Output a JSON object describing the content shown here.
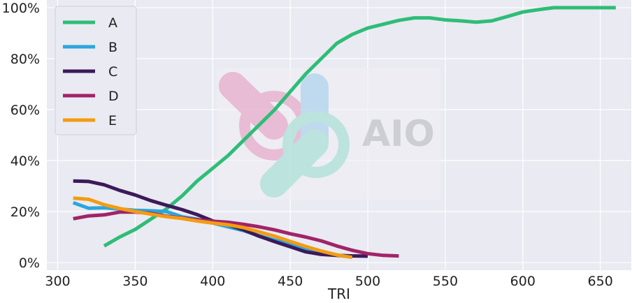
{
  "chart_data": {
    "type": "line",
    "title": "",
    "xlabel": "TRI",
    "ylabel": "",
    "xlim": [
      293,
      670
    ],
    "ylim": [
      -3,
      103
    ],
    "xticks": [
      300,
      350,
      400,
      450,
      500,
      550,
      600,
      650
    ],
    "xtick_labels": [
      "300",
      "350",
      "400",
      "450",
      "500",
      "550",
      "600",
      "650"
    ],
    "yticks": [
      0,
      20,
      40,
      60,
      80,
      100
    ],
    "ytick_labels": [
      "0%",
      "20%",
      "40%",
      "60%",
      "80%",
      "100%"
    ],
    "grid": true,
    "legend_position": "top-left",
    "series": [
      {
        "name": "A",
        "color": "#2ebd77",
        "x": [
          330,
          340,
          350,
          360,
          370,
          380,
          390,
          400,
          410,
          420,
          430,
          440,
          450,
          460,
          470,
          480,
          490,
          500,
          510,
          520,
          530,
          540,
          550,
          560,
          570,
          580,
          590,
          600,
          610,
          620,
          630,
          640,
          650,
          660
        ],
        "y": [
          6.5,
          10,
          13,
          17,
          21,
          26,
          32,
          37,
          42,
          48,
          54,
          60,
          67,
          74,
          80,
          86,
          89.5,
          92,
          93.5,
          95,
          96,
          96,
          95.2,
          94.8,
          94.3,
          94.8,
          96.5,
          98.3,
          99.2,
          100,
          100,
          100,
          100,
          100
        ]
      },
      {
        "name": "B",
        "color": "#2aa6de",
        "x": [
          310,
          320,
          330,
          340,
          350,
          360,
          370,
          380,
          390,
          400,
          410,
          420,
          430,
          440,
          450,
          460,
          470,
          480,
          490
        ],
        "y": [
          23.5,
          21.3,
          21.5,
          21,
          20.5,
          20.3,
          20,
          18,
          17,
          15.5,
          14,
          12.5,
          10.5,
          8.8,
          7.2,
          5.3,
          3.8,
          2.8,
          2.2
        ]
      },
      {
        "name": "C",
        "color": "#3b1a5a",
        "x": [
          310,
          320,
          330,
          340,
          350,
          360,
          370,
          380,
          390,
          400,
          410,
          420,
          430,
          440,
          450,
          460,
          470,
          480,
          490,
          500
        ],
        "y": [
          32,
          31.8,
          30.5,
          28.3,
          26.5,
          24.3,
          22.5,
          20.8,
          18.8,
          16.3,
          14.8,
          12.8,
          10.3,
          8.2,
          6.2,
          4.2,
          3.2,
          2.8,
          2.6,
          2.5
        ]
      },
      {
        "name": "D",
        "color": "#a12468",
        "x": [
          310,
          320,
          330,
          340,
          350,
          360,
          370,
          380,
          390,
          400,
          410,
          420,
          430,
          440,
          450,
          460,
          470,
          480,
          490,
          500,
          510,
          520
        ],
        "y": [
          17.2,
          18.3,
          18.7,
          19.8,
          19.8,
          19.3,
          18.2,
          17.5,
          16.8,
          16.2,
          15.8,
          15,
          14,
          12.8,
          11.3,
          10,
          8.5,
          6.5,
          4.8,
          3.5,
          2.8,
          2.6
        ]
      },
      {
        "name": "E",
        "color": "#f39c12",
        "x": [
          310,
          320,
          330,
          340,
          350,
          360,
          370,
          380,
          390,
          400,
          410,
          420,
          430,
          440,
          450,
          460,
          470,
          480,
          490
        ],
        "y": [
          25.3,
          24.8,
          22.7,
          21.2,
          20,
          19,
          18,
          17.3,
          16.3,
          15.5,
          14.8,
          13.7,
          12,
          10.3,
          8.3,
          6.3,
          4.5,
          3,
          2
        ]
      }
    ]
  },
  "watermark": {
    "text": "AIO",
    "colors": [
      "#e8b4cf",
      "#b8d8ef",
      "#b5e2da",
      "#c6c6cc"
    ]
  }
}
